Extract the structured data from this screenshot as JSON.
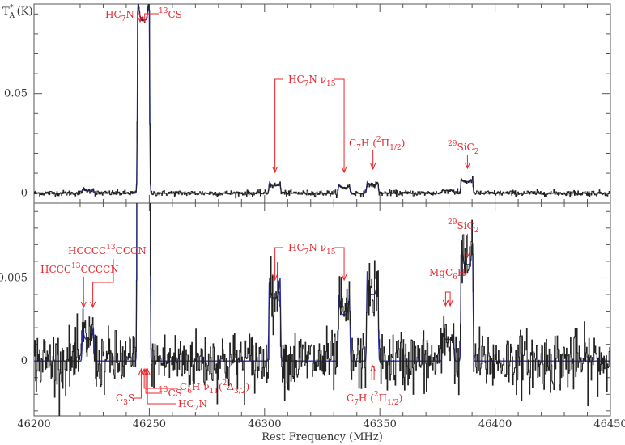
{
  "chart_data": {
    "type": "line",
    "xlabel": "Rest Frequency (MHz)",
    "ylabel_top": "T*A (K)",
    "xlim": [
      46200,
      46450
    ],
    "x_ticks": [
      46200,
      46250,
      46300,
      46350,
      46400,
      46450
    ],
    "colors": {
      "data": "#222222",
      "model": "#2a2abf",
      "annotation": "#e8262c",
      "frame": "#555555"
    },
    "panels": [
      {
        "id": "top",
        "ylim": [
          -0.005,
          0.095
        ],
        "y_ticks": [
          0,
          0.05
        ],
        "y_tick_labels": [
          "0",
          "0.05"
        ],
        "noise": 0.0007,
        "annotations": [
          {
            "label": "HC7N",
            "x": 46246
          },
          {
            "label": "13CS",
            "x": 46248
          },
          {
            "label": "HC7N ν15",
            "x": 46304.5
          },
          {
            "label": "HC7N ν15",
            "x": 46334.5
          },
          {
            "label": "C7H (2Π1/2)",
            "x": 46347
          },
          {
            "label": "29SiC2",
            "x": 46388
          }
        ]
      },
      {
        "id": "bottom",
        "ylim": [
          -0.0033,
          0.0095
        ],
        "y_ticks": [
          0,
          0.005
        ],
        "y_tick_labels": [
          "0",
          "0.005"
        ],
        "noise": 0.0009,
        "annotations": [
          {
            "label": "HCCC13CCCCN",
            "x": 46221.5
          },
          {
            "label": "HCCCC13CCCN",
            "x": 46225.5
          },
          {
            "label": "HC7N ν15",
            "x": 46304.5
          },
          {
            "label": "HC7N ν15",
            "x": 46334.5
          },
          {
            "label": "MgC6H",
            "x": 46378.5
          },
          {
            "label": "MgC6H",
            "x": 46380.5
          },
          {
            "label": "29SiC2",
            "x": 46388
          },
          {
            "label": "C3S",
            "x": 46246.5
          },
          {
            "label": "C6H ν11(2Δ3/2)",
            "x": 46247.8
          },
          {
            "label": "13CS",
            "x": 46248.5
          },
          {
            "label": "HC7N",
            "x": 46249.2
          },
          {
            "label": "C7H (2Π1/2)",
            "x": 46347
          }
        ]
      }
    ],
    "components": [
      {
        "center": 46247.5,
        "width": 4.8,
        "amp": 0.087,
        "horn": 0.15
      },
      {
        "center": 46223.4,
        "width": 4.6,
        "amp": 0.0013,
        "horn": 0.6
      },
      {
        "center": 46304.4,
        "width": 4.6,
        "amp": 0.0038,
        "horn": 0.35
      },
      {
        "center": 46334.5,
        "width": 4.6,
        "amp": 0.0028,
        "horn": 0.45
      },
      {
        "center": 46346.8,
        "width": 4.6,
        "amp": 0.004,
        "horn": 0.35
      },
      {
        "center": 46379.6,
        "width": 4.6,
        "amp": 0.0013,
        "horn": 0.3
      },
      {
        "center": 46387.8,
        "width": 4.8,
        "amp": 0.0058,
        "horn": 0.25
      }
    ]
  }
}
